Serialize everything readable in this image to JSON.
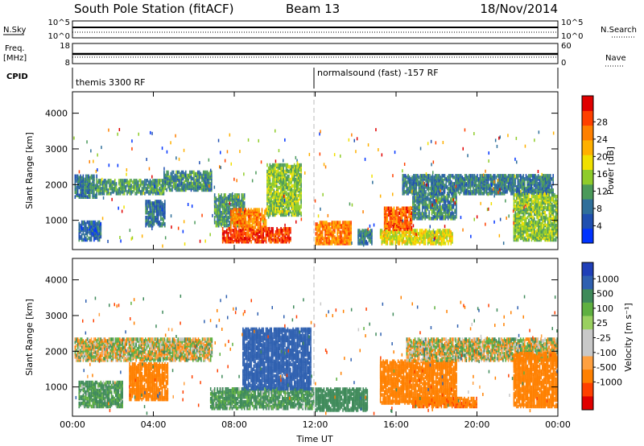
{
  "header": {
    "station": "South Pole Station (fitACF)",
    "beam": "Beam 13",
    "date": "18/Nov/2014"
  },
  "top_panels": {
    "nsky_label": "N.Sky",
    "nsearch_label": "N.Search",
    "nsky_ticks": [
      "10^5",
      "10^0"
    ],
    "nsearch_ticks": [
      "10^5",
      "10^0"
    ],
    "freq_label_1": "Freq.",
    "freq_label_2": "[MHz]",
    "freq_ticks": [
      "18",
      "8"
    ],
    "nave_label": "Nave",
    "nave_ticks": [
      "60",
      "0"
    ],
    "cpid_label": "CPID",
    "cpid_segments": [
      {
        "name": "themis 3300 RF",
        "start_hour": 0,
        "end_hour": 12
      },
      {
        "name": "normalsound (fast) -157 RF",
        "start_hour": 12,
        "end_hour": 24
      }
    ]
  },
  "chart_data": [
    {
      "type": "heatmap",
      "panel": "power",
      "ylabel": "Slant Range [km]",
      "xlabel": "",
      "x_ticks": [
        "00:00",
        "04:00",
        "08:00",
        "12:00",
        "16:00",
        "20:00",
        "00:00"
      ],
      "xlim_hours": [
        0,
        24
      ],
      "y_ticks": [
        1000,
        2000,
        3000,
        4000
      ],
      "ylim": [
        180,
        4600
      ],
      "colorbar": {
        "label": "Power [dB]",
        "ticks": [
          "4",
          "8",
          "12",
          "16",
          "20",
          "24",
          "28"
        ],
        "colors": [
          "#0033ff",
          "#1f4fb0",
          "#2f6f9a",
          "#4b9a5a",
          "#8fcc2a",
          "#f0e000",
          "#ffb000",
          "#ff8000",
          "#ff4000",
          "#e00000"
        ],
        "range": [
          0,
          30
        ]
      },
      "echo_regions": [
        {
          "t0": 0.1,
          "t1": 1.2,
          "r0": 1600,
          "r1": 2200,
          "level": 8
        },
        {
          "t0": 1.2,
          "t1": 4.5,
          "r0": 1700,
          "r1": 2100,
          "level": 10
        },
        {
          "t0": 4.5,
          "t1": 6.9,
          "r0": 1800,
          "r1": 2300,
          "level": 9
        },
        {
          "t0": 0.3,
          "t1": 1.4,
          "r0": 400,
          "r1": 900,
          "level": 6
        },
        {
          "t0": 3.6,
          "t1": 4.6,
          "r0": 800,
          "r1": 1500,
          "level": 7
        },
        {
          "t0": 7.0,
          "t1": 8.5,
          "r0": 800,
          "r1": 1700,
          "level": 10
        },
        {
          "t0": 7.4,
          "t1": 10.8,
          "r0": 350,
          "r1": 750,
          "level": 26
        },
        {
          "t0": 7.8,
          "t1": 9.6,
          "r0": 750,
          "r1": 1250,
          "level": 22
        },
        {
          "t0": 9.6,
          "t1": 11.3,
          "r0": 1100,
          "r1": 2500,
          "level": 13
        },
        {
          "t0": 12.0,
          "t1": 13.8,
          "r0": 300,
          "r1": 900,
          "level": 22
        },
        {
          "t0": 14.1,
          "t1": 14.8,
          "r0": 300,
          "r1": 700,
          "level": 8
        },
        {
          "t0": 15.2,
          "t1": 18.8,
          "r0": 300,
          "r1": 700,
          "level": 16
        },
        {
          "t0": 15.4,
          "t1": 16.8,
          "r0": 700,
          "r1": 1300,
          "level": 24
        },
        {
          "t0": 16.8,
          "t1": 19.0,
          "r0": 1000,
          "r1": 1700,
          "level": 9
        },
        {
          "t0": 16.3,
          "t1": 23.8,
          "r0": 1700,
          "r1": 2200,
          "level": 8
        },
        {
          "t0": 21.8,
          "t1": 24.0,
          "r0": 400,
          "r1": 1700,
          "level": 13
        }
      ]
    },
    {
      "type": "heatmap",
      "panel": "velocity",
      "ylabel": "Slant Range [km]",
      "xlabel": "Time UT",
      "x_ticks": [
        "00:00",
        "04:00",
        "08:00",
        "12:00",
        "16:00",
        "20:00",
        "00:00"
      ],
      "xlim_hours": [
        0,
        24
      ],
      "y_ticks": [
        1000,
        2000,
        3000,
        4000
      ],
      "ylim": [
        180,
        4600
      ],
      "colorbar": {
        "label": "Velocity [m s⁻¹]",
        "ticks": [
          "1000",
          "500",
          "100",
          "25",
          "-25",
          "-100",
          "-500",
          "-1000"
        ],
        "colors": [
          "#1f3fb8",
          "#2f60b0",
          "#3f8a5a",
          "#5fb040",
          "#9ad060",
          "#c8c8c8",
          "#c8c8c8",
          "#ffa040",
          "#ff8000",
          "#ff4000",
          "#e00000"
        ]
      },
      "echo_regions": [
        {
          "t0": 0.1,
          "t1": 6.9,
          "r0": 1700,
          "r1": 2300,
          "level": 0
        },
        {
          "t0": 2.8,
          "t1": 4.7,
          "r0": 600,
          "r1": 1600,
          "level": -300
        },
        {
          "t0": 0.3,
          "t1": 2.5,
          "r0": 400,
          "r1": 1100,
          "level": 150
        },
        {
          "t0": 6.8,
          "t1": 11.9,
          "r0": 350,
          "r1": 900,
          "level": 150
        },
        {
          "t0": 8.4,
          "t1": 11.8,
          "r0": 900,
          "r1": 2600,
          "level": 800
        },
        {
          "t0": 12.0,
          "t1": 14.6,
          "r0": 300,
          "r1": 900,
          "level": 250
        },
        {
          "t0": 15.2,
          "t1": 19.0,
          "r0": 500,
          "r1": 1700,
          "level": -300
        },
        {
          "t0": 16.8,
          "t1": 20.0,
          "r0": 400,
          "r1": 650,
          "level": -400
        },
        {
          "t0": 16.5,
          "t1": 24.0,
          "r0": 1700,
          "r1": 2300,
          "level": 0
        },
        {
          "t0": 21.8,
          "t1": 24.0,
          "r0": 400,
          "r1": 1900,
          "level": -350
        }
      ]
    }
  ]
}
